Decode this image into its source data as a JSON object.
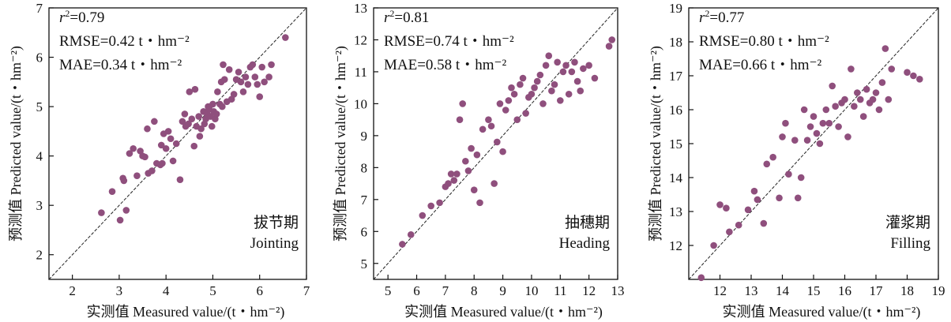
{
  "colors": {
    "point": "#8f4f7d",
    "axis": "#111111",
    "line": "#222222"
  },
  "chart_data": [
    {
      "type": "scatter",
      "xlim": [
        1.5,
        7
      ],
      "ylim": [
        1.5,
        7
      ],
      "xticks": [
        2,
        3,
        4,
        5,
        6,
        7
      ],
      "yticks": [
        2,
        3,
        4,
        5,
        6,
        7
      ],
      "xlabel": "实测值 Measured value/(t・hm⁻²)",
      "ylabel": "预测值 Predicted value/(t・hm⁻²)",
      "stats": {
        "r2": "=0.79",
        "rmse": "RMSE=0.42 t・hm⁻²",
        "mae": "MAE=0.34 t・hm⁻²"
      },
      "stage_cn": "拔节期",
      "stage_en": "Jointing",
      "x": [
        2.62,
        2.85,
        3.02,
        3.08,
        3.1,
        3.15,
        3.22,
        3.3,
        3.38,
        3.45,
        3.5,
        3.55,
        3.6,
        3.62,
        3.7,
        3.75,
        3.8,
        3.88,
        3.9,
        3.92,
        3.95,
        4.0,
        4.05,
        4.1,
        4.15,
        4.22,
        4.3,
        4.35,
        4.4,
        4.42,
        4.48,
        4.5,
        4.55,
        4.6,
        4.62,
        4.65,
        4.7,
        4.72,
        4.75,
        4.8,
        4.82,
        4.85,
        4.88,
        4.9,
        4.92,
        4.95,
        4.98,
        5.0,
        5.02,
        5.05,
        5.08,
        5.1,
        5.15,
        5.18,
        5.2,
        5.22,
        5.25,
        5.3,
        5.35,
        5.4,
        5.45,
        5.5,
        5.55,
        5.6,
        5.65,
        5.7,
        5.75,
        5.8,
        5.85,
        5.9,
        5.95,
        6.0,
        6.05,
        6.1,
        6.2,
        6.25,
        6.55
      ],
      "y": [
        2.85,
        3.28,
        2.7,
        3.55,
        3.5,
        2.9,
        4.05,
        4.15,
        3.6,
        4.1,
        4.0,
        3.98,
        4.55,
        3.65,
        3.7,
        4.7,
        3.85,
        3.82,
        4.22,
        3.85,
        4.45,
        4.15,
        4.5,
        4.35,
        3.9,
        4.25,
        3.52,
        4.7,
        4.85,
        4.6,
        4.65,
        5.3,
        4.75,
        4.2,
        5.35,
        4.6,
        4.8,
        4.4,
        4.55,
        4.9,
        4.65,
        4.75,
        4.85,
        5.0,
        4.95,
        4.8,
        4.6,
        5.05,
        4.9,
        4.75,
        4.85,
        5.3,
        5.05,
        5.5,
        5.0,
        5.85,
        5.55,
        5.1,
        5.75,
        5.15,
        5.25,
        5.55,
        5.7,
        5.5,
        5.3,
        5.6,
        5.45,
        5.8,
        5.85,
        5.6,
        5.45,
        5.2,
        5.8,
        5.5,
        5.6,
        5.85,
        6.4
      ]
    },
    {
      "type": "scatter",
      "xlim": [
        4.5,
        13
      ],
      "ylim": [
        4.5,
        13
      ],
      "xticks": [
        5,
        6,
        7,
        8,
        9,
        10,
        11,
        12,
        13
      ],
      "yticks": [
        5,
        6,
        7,
        8,
        9,
        10,
        11,
        12,
        13
      ],
      "xlabel": "实测值 Measured value/(t・hm⁻²)",
      "ylabel": "预测值 Predicted value/(t・hm⁻²)",
      "stats": {
        "r2": "=0.81",
        "rmse": "RMSE=0.74 t・hm⁻²",
        "mae": "MAE=0.58 t・hm⁻²"
      },
      "stage_cn": "抽穗期",
      "stage_en": "Heading",
      "x": [
        5.5,
        5.8,
        6.2,
        6.5,
        6.8,
        7.0,
        7.1,
        7.2,
        7.3,
        7.4,
        7.5,
        7.6,
        7.7,
        7.8,
        7.9,
        8.0,
        8.1,
        8.2,
        8.3,
        8.5,
        8.6,
        8.7,
        8.8,
        8.9,
        9.0,
        9.1,
        9.2,
        9.3,
        9.4,
        9.5,
        9.6,
        9.7,
        9.8,
        9.9,
        10.0,
        10.1,
        10.2,
        10.3,
        10.4,
        10.5,
        10.6,
        10.7,
        10.8,
        10.9,
        11.0,
        11.1,
        11.2,
        11.3,
        11.4,
        11.5,
        11.6,
        11.7,
        11.8,
        12.0,
        12.2,
        12.7,
        12.8
      ],
      "y": [
        5.6,
        5.9,
        6.5,
        6.8,
        6.9,
        7.4,
        7.5,
        7.8,
        7.6,
        7.8,
        9.5,
        10.0,
        8.2,
        7.9,
        8.6,
        7.3,
        8.4,
        6.9,
        9.2,
        9.5,
        9.3,
        7.5,
        8.8,
        10.0,
        8.5,
        9.8,
        10.1,
        10.5,
        10.3,
        9.5,
        10.6,
        10.8,
        9.7,
        10.2,
        10.3,
        10.5,
        10.7,
        10.9,
        10.0,
        11.2,
        11.5,
        10.4,
        10.6,
        11.3,
        10.1,
        11.0,
        11.2,
        10.3,
        11.0,
        11.3,
        10.7,
        10.4,
        11.1,
        11.2,
        10.8,
        11.8,
        12.0
      ]
    },
    {
      "type": "scatter",
      "xlim": [
        11,
        19
      ],
      "ylim": [
        11,
        19
      ],
      "xticks": [
        12,
        13,
        14,
        15,
        16,
        17,
        18,
        19
      ],
      "yticks": [
        12,
        13,
        14,
        15,
        16,
        17,
        18,
        19
      ],
      "xlabel": "实测值 Measured value/(t・hm⁻²)",
      "ylabel": "预测值 Predicted value/(t・hm⁻²)",
      "stats": {
        "r2": "=0.77",
        "rmse": "RMSE=0.80 t・hm⁻²",
        "mae": "MAE=0.66 t・hm⁻²"
      },
      "stage_cn": "灌浆期",
      "stage_en": "Filling",
      "x": [
        11.4,
        11.8,
        12.0,
        12.2,
        12.3,
        12.6,
        12.9,
        13.1,
        13.2,
        13.4,
        13.5,
        13.7,
        13.9,
        14.0,
        14.1,
        14.2,
        14.4,
        14.5,
        14.6,
        14.7,
        14.8,
        14.9,
        15.0,
        15.1,
        15.2,
        15.3,
        15.4,
        15.5,
        15.6,
        15.7,
        15.8,
        15.9,
        16.0,
        16.1,
        16.2,
        16.3,
        16.4,
        16.5,
        16.6,
        16.7,
        16.8,
        16.9,
        17.0,
        17.1,
        17.2,
        17.3,
        17.4,
        17.5,
        18.0,
        18.2,
        18.4
      ],
      "y": [
        11.05,
        12.0,
        13.2,
        13.1,
        12.4,
        12.6,
        13.05,
        13.6,
        13.35,
        12.65,
        14.4,
        14.6,
        13.4,
        15.2,
        15.6,
        14.1,
        15.1,
        13.4,
        14.0,
        16.0,
        15.1,
        15.5,
        15.8,
        15.3,
        15.0,
        15.6,
        16.0,
        15.6,
        16.7,
        16.1,
        15.5,
        16.2,
        16.3,
        15.2,
        17.2,
        16.1,
        16.5,
        16.3,
        15.8,
        16.6,
        16.2,
        16.3,
        16.5,
        16.0,
        16.8,
        17.8,
        16.3,
        17.2,
        17.1,
        17.0,
        16.9
      ]
    }
  ]
}
